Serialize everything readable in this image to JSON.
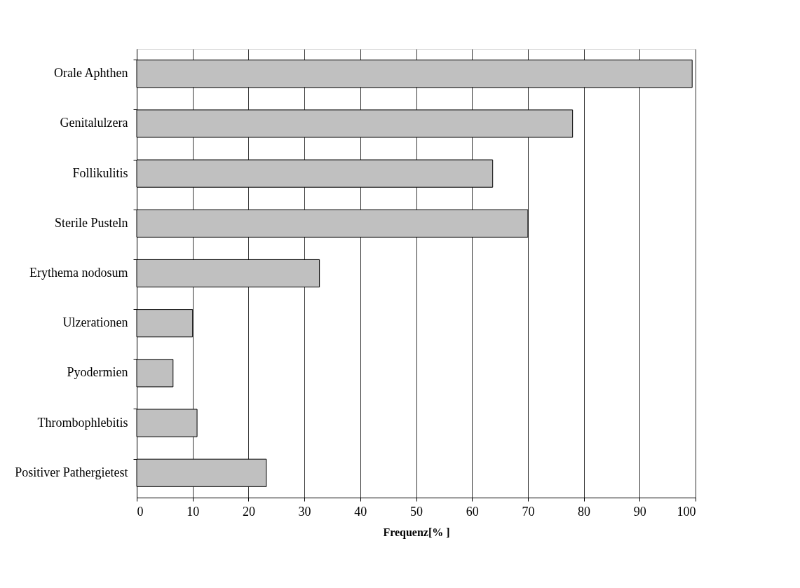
{
  "chart_data": {
    "type": "bar",
    "orientation": "horizontal",
    "xlabel": "Frequenz[% ]",
    "categories": [
      "Orale Aphthen",
      "Genitalulzera",
      "Follikulitis",
      "Sterile Pusteln ",
      "Erythema nodosum",
      "Ulzerationen",
      "Pyodermien",
      "Thrombophlebitis",
      "Positiver Pathergietest"
    ],
    "values": [
      99.4,
      78,
      63.7,
      70,
      32.7,
      10,
      6.5,
      10.8,
      23.2
    ],
    "color": "#c0c0c0",
    "xlim": [
      0,
      100
    ],
    "xticks": [
      0,
      10,
      20,
      30,
      40,
      50,
      60,
      70,
      80,
      90,
      100
    ],
    "grid": "x"
  }
}
